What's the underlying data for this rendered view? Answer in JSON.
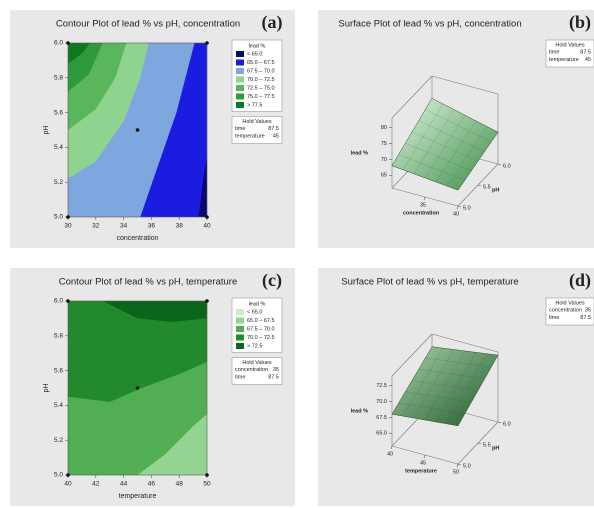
{
  "chart_data": [
    {
      "type": "contour",
      "label": "(a)",
      "title": "Contour Plot of lead % vs pH, concentration",
      "xlabel": "concentration",
      "ylabel": "pH",
      "xlim": [
        30,
        40
      ],
      "ylim": [
        5,
        6
      ],
      "xticks": [
        30,
        32,
        34,
        36,
        38,
        40
      ],
      "yticks": [
        {
          "value": 5,
          "label": "5.0"
        },
        5.2,
        5.4,
        5.6,
        5.8,
        {
          "value": 6,
          "label": "6.0"
        }
      ],
      "legend": {
        "title": "lead %",
        "entries": [
          {
            "label": "< 65.0",
            "color": "#0a0a6e"
          },
          {
            "label": "65.0 – 67.5",
            "color": "#1c1ce0"
          },
          {
            "label": "67.5 – 70.0",
            "color": "#7ea7e0"
          },
          {
            "label": "70.0 – 72.5",
            "color": "#8ed48e"
          },
          {
            "label": "72.5 – 75.0",
            "color": "#5ab65a"
          },
          {
            "label": "75.0 – 77.5",
            "color": "#2f9a3c"
          },
          {
            "label": "> 77.5",
            "color": "#0b7a22"
          }
        ]
      },
      "regions": [
        {
          "x": [
            30,
            40,
            40,
            30
          ],
          "y": [
            5,
            5,
            6,
            6
          ]
        },
        {
          "x": [
            30,
            39.4,
            39.7,
            40,
            40,
            30
          ],
          "y": [
            5,
            5,
            5.2,
            5.35,
            6,
            6
          ]
        },
        {
          "x": [
            30,
            35.2,
            36.5,
            37.8,
            39.1,
            30
          ],
          "y": [
            5,
            5,
            5.3,
            5.6,
            6,
            6
          ]
        },
        {
          "x": [
            30,
            32,
            34,
            35.2,
            35.8,
            30
          ],
          "y": [
            5.22,
            5.32,
            5.55,
            5.8,
            6,
            6
          ]
        },
        {
          "x": [
            30,
            32,
            33.4,
            34.2,
            30
          ],
          "y": [
            5.5,
            5.62,
            5.8,
            6,
            6
          ]
        },
        {
          "x": [
            30,
            31.5,
            32.5,
            30
          ],
          "y": [
            5.72,
            5.82,
            6,
            6
          ]
        },
        {
          "x": [
            30,
            31,
            31.6,
            30
          ],
          "y": [
            5.88,
            5.94,
            6,
            6
          ]
        }
      ],
      "points": {
        "x": [
          30,
          40,
          30,
          40,
          35
        ],
        "y": [
          6,
          6,
          5,
          5,
          5.5
        ]
      },
      "hold": {
        "title": "Hold Values",
        "items": [
          {
            "name": "time",
            "value": 87.5
          },
          {
            "name": "temperature",
            "value": 45
          }
        ]
      }
    },
    {
      "type": "surface",
      "label": "(b)",
      "title": "Surface Plot of lead % vs pH, concentration",
      "xlabel": "concentration",
      "ylabel": "pH",
      "zlabel": "lead %",
      "xlim": [
        30,
        40
      ],
      "ylim": [
        5,
        6
      ],
      "zlim": [
        61,
        83
      ],
      "xticks": [
        35,
        40
      ],
      "yticks": [
        {
          "value": 5,
          "label": "5.0"
        },
        5.5,
        {
          "value": 6,
          "label": "6.0"
        }
      ],
      "zticks": [
        65,
        70,
        75,
        80
      ],
      "surface": {
        "x": [
          30,
          40
        ],
        "y": [
          5,
          6
        ],
        "z": [
          [
            68,
            76
          ],
          [
            66,
            71
          ]
        ]
      },
      "colors": [
        "#e0f5e0",
        "#3c8c46"
      ],
      "hold": {
        "title": "Hold Values",
        "items": [
          {
            "name": "time",
            "value": 87.5
          },
          {
            "name": "temperature",
            "value": 45
          }
        ]
      }
    },
    {
      "type": "contour",
      "label": "(c)",
      "title": "Contour Plot of lead % vs pH, temperature",
      "xlabel": "temperature",
      "ylabel": "pH",
      "xlim": [
        40,
        50
      ],
      "ylim": [
        5,
        6
      ],
      "xticks": [
        40,
        42,
        44,
        46,
        48,
        50
      ],
      "yticks": [
        {
          "value": 5,
          "label": "5.0"
        },
        5.2,
        5.4,
        5.6,
        5.8,
        {
          "value": 6,
          "label": "6.0"
        }
      ],
      "legend": {
        "title": "lead %",
        "entries": [
          {
            "label": "< 65.0",
            "color": "#c9edc9"
          },
          {
            "label": "65.0 – 67.5",
            "color": "#93d493"
          },
          {
            "label": "67.5 – 70.0",
            "color": "#52ae52"
          },
          {
            "label": "70.0 – 72.5",
            "color": "#228a2c"
          },
          {
            "label": "> 72.5",
            "color": "#0a661a"
          }
        ]
      },
      "regions": [
        {
          "x": [
            40,
            50,
            50,
            40
          ],
          "y": [
            5,
            5,
            6,
            6
          ]
        },
        {
          "x": [
            40,
            50,
            50,
            40
          ],
          "y": [
            5,
            5,
            6,
            6
          ]
        },
        {
          "x": [
            40,
            45,
            47,
            49,
            50,
            50,
            40
          ],
          "y": [
            5,
            5,
            5.12,
            5.28,
            5.35,
            6,
            6
          ]
        },
        {
          "x": [
            40,
            43,
            45.3,
            48,
            50,
            50,
            40
          ],
          "y": [
            5.45,
            5.42,
            5.5,
            5.58,
            5.65,
            6,
            6
          ]
        },
        {
          "x": [
            42.5,
            45,
            47.5,
            50,
            50
          ],
          "y": [
            6,
            5.9,
            5.88,
            5.9,
            6
          ]
        }
      ],
      "points": {
        "x": [
          40,
          50,
          40,
          50,
          45
        ],
        "y": [
          6,
          6,
          5,
          5,
          5.5
        ]
      },
      "hold": {
        "title": "Hold Values",
        "items": [
          {
            "name": "concentration",
            "value": 35
          },
          {
            "name": "time",
            "value": 87.5
          }
        ]
      }
    },
    {
      "type": "surface",
      "label": "(d)",
      "title": "Surface Plot of lead % vs pH, temperature",
      "xlabel": "temperature",
      "ylabel": "pH",
      "zlabel": "lead %",
      "xlim": [
        40,
        50
      ],
      "ylim": [
        5,
        6
      ],
      "zlim": [
        63,
        74
      ],
      "xticks": [
        40,
        45,
        50
      ],
      "yticks": [
        {
          "value": 5,
          "label": "5.0"
        },
        5.5,
        {
          "value": 6,
          "label": "6.0"
        }
      ],
      "zticks": [
        {
          "value": 65,
          "label": "65.0"
        },
        67.5,
        {
          "value": 70,
          "label": "70.0"
        },
        72.5
      ],
      "surface": {
        "x": [
          40,
          50
        ],
        "y": [
          5,
          6
        ],
        "z": [
          [
            68,
            72
          ],
          [
            69,
            73.5
          ]
        ]
      },
      "colors": [
        "#a8d2a8",
        "#1e5a2a"
      ],
      "hold": {
        "title": "Hold Values",
        "items": [
          {
            "name": "concentration",
            "value": 35
          },
          {
            "name": "time",
            "value": 87.5
          }
        ]
      }
    }
  ]
}
